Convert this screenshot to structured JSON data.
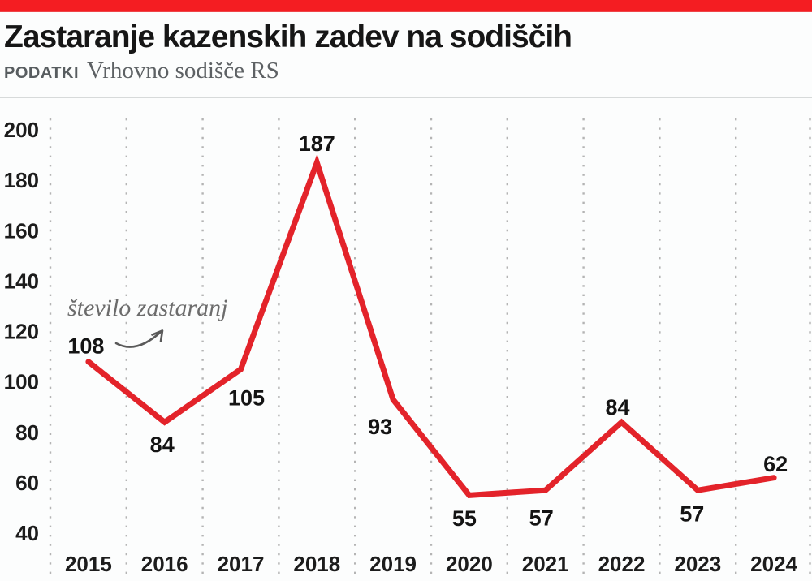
{
  "colors": {
    "accent_bar": "#f41d22",
    "line": "#e3232a",
    "grid_dots": "#b4b4b4",
    "annotation_arrow": "#5a5a5a"
  },
  "header": {
    "title": "Zastaranje kazenskih zadev na sodiščih",
    "source_label": "PODATKI",
    "source_value": "Vrhovno sodišče RS"
  },
  "annotation": {
    "text": "število zastaranj"
  },
  "chart_data": {
    "type": "line",
    "x": [
      "2015",
      "2016",
      "2017",
      "2018",
      "2019",
      "2020",
      "2021",
      "2022",
      "2023",
      "2024"
    ],
    "values": [
      108,
      84,
      105,
      187,
      93,
      55,
      57,
      84,
      57,
      62
    ],
    "series_label": "število zastaranj",
    "title": "Zastaranje kazenskih zadev na sodiščih",
    "xlabel": "",
    "ylabel": "",
    "ylim": [
      40,
      200
    ],
    "yticks": [
      200,
      180,
      160,
      140,
      120,
      100,
      80,
      60,
      40
    ],
    "grid": "vertical-dotted",
    "legend": "inline-annotation",
    "line_color": "#e3232a"
  }
}
